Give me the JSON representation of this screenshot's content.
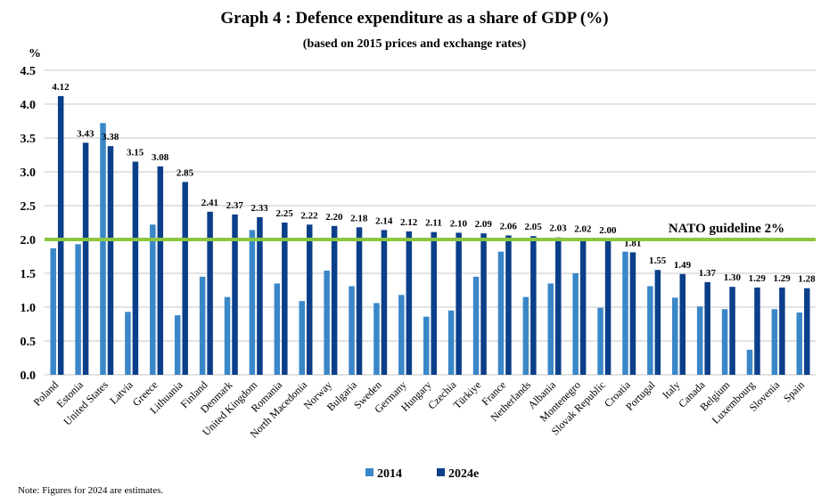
{
  "chart_data": {
    "type": "bar",
    "title": "Graph 4 : Defence expenditure as a share of GDP (%)",
    "subtitle": "(based on 2015 prices and exchange rates)",
    "ylabel": "%",
    "ylim": [
      0,
      4.5
    ],
    "yticks": [
      "0.0",
      "0.5",
      "1.0",
      "1.5",
      "2.0",
      "2.5",
      "3.0",
      "3.5",
      "4.0",
      "4.5"
    ],
    "grid": true,
    "legend_placement": "bottom",
    "categories": [
      "Poland",
      "Estonia",
      "United States",
      "Latvia",
      "Greece",
      "Lithuania",
      "Finland",
      "Denmark",
      "United Kingdom",
      "Romania",
      "North Macedonia",
      "Norway",
      "Bulgaria",
      "Sweden",
      "Germany",
      "Hungary",
      "Czechia",
      "Türkiye",
      "France",
      "Netherlands",
      "Albania",
      "Montenegro",
      "Slovak Republic",
      "Croatia",
      "Portugal",
      "Italy",
      "Canada",
      "Belgium",
      "Luxembourg",
      "Slovenia",
      "Spain"
    ],
    "series": [
      {
        "name": "2014",
        "color": "#3a87c8",
        "values": [
          1.87,
          1.93,
          3.72,
          0.93,
          2.22,
          0.88,
          1.45,
          1.15,
          2.14,
          1.35,
          1.09,
          1.54,
          1.31,
          1.06,
          1.18,
          0.86,
          0.95,
          1.45,
          1.82,
          1.15,
          1.35,
          1.5,
          0.99,
          1.82,
          1.31,
          1.14,
          1.01,
          0.97,
          0.37,
          0.97,
          0.92
        ]
      },
      {
        "name": "2024e",
        "color": "#0b3f8a",
        "values": [
          4.12,
          3.43,
          3.38,
          3.15,
          3.08,
          2.85,
          2.41,
          2.37,
          2.33,
          2.25,
          2.22,
          2.2,
          2.18,
          2.14,
          2.12,
          2.11,
          2.1,
          2.09,
          2.06,
          2.05,
          2.03,
          2.02,
          2.0,
          1.81,
          1.55,
          1.49,
          1.37,
          1.3,
          1.29,
          1.29,
          1.28
        ]
      }
    ],
    "data_labels": [
      "4.12",
      "3.43",
      "3.38",
      "3.15",
      "3.08",
      "2.85",
      "2.41",
      "2.37",
      "2.33",
      "2.25",
      "2.22",
      "2.20",
      "2.18",
      "2.14",
      "2.12",
      "2.11",
      "2.10",
      "2.09",
      "2.06",
      "2.05",
      "2.03",
      "2.02",
      "2.00",
      "1.81",
      "1.55",
      "1.49",
      "1.37",
      "1.30",
      "1.29",
      "1.29",
      "1.28"
    ],
    "reference_line": {
      "value": 2.0,
      "label": "NATO guideline 2%",
      "color": "#8cc63f"
    }
  },
  "note": "Note: Figures for 2024 are estimates."
}
